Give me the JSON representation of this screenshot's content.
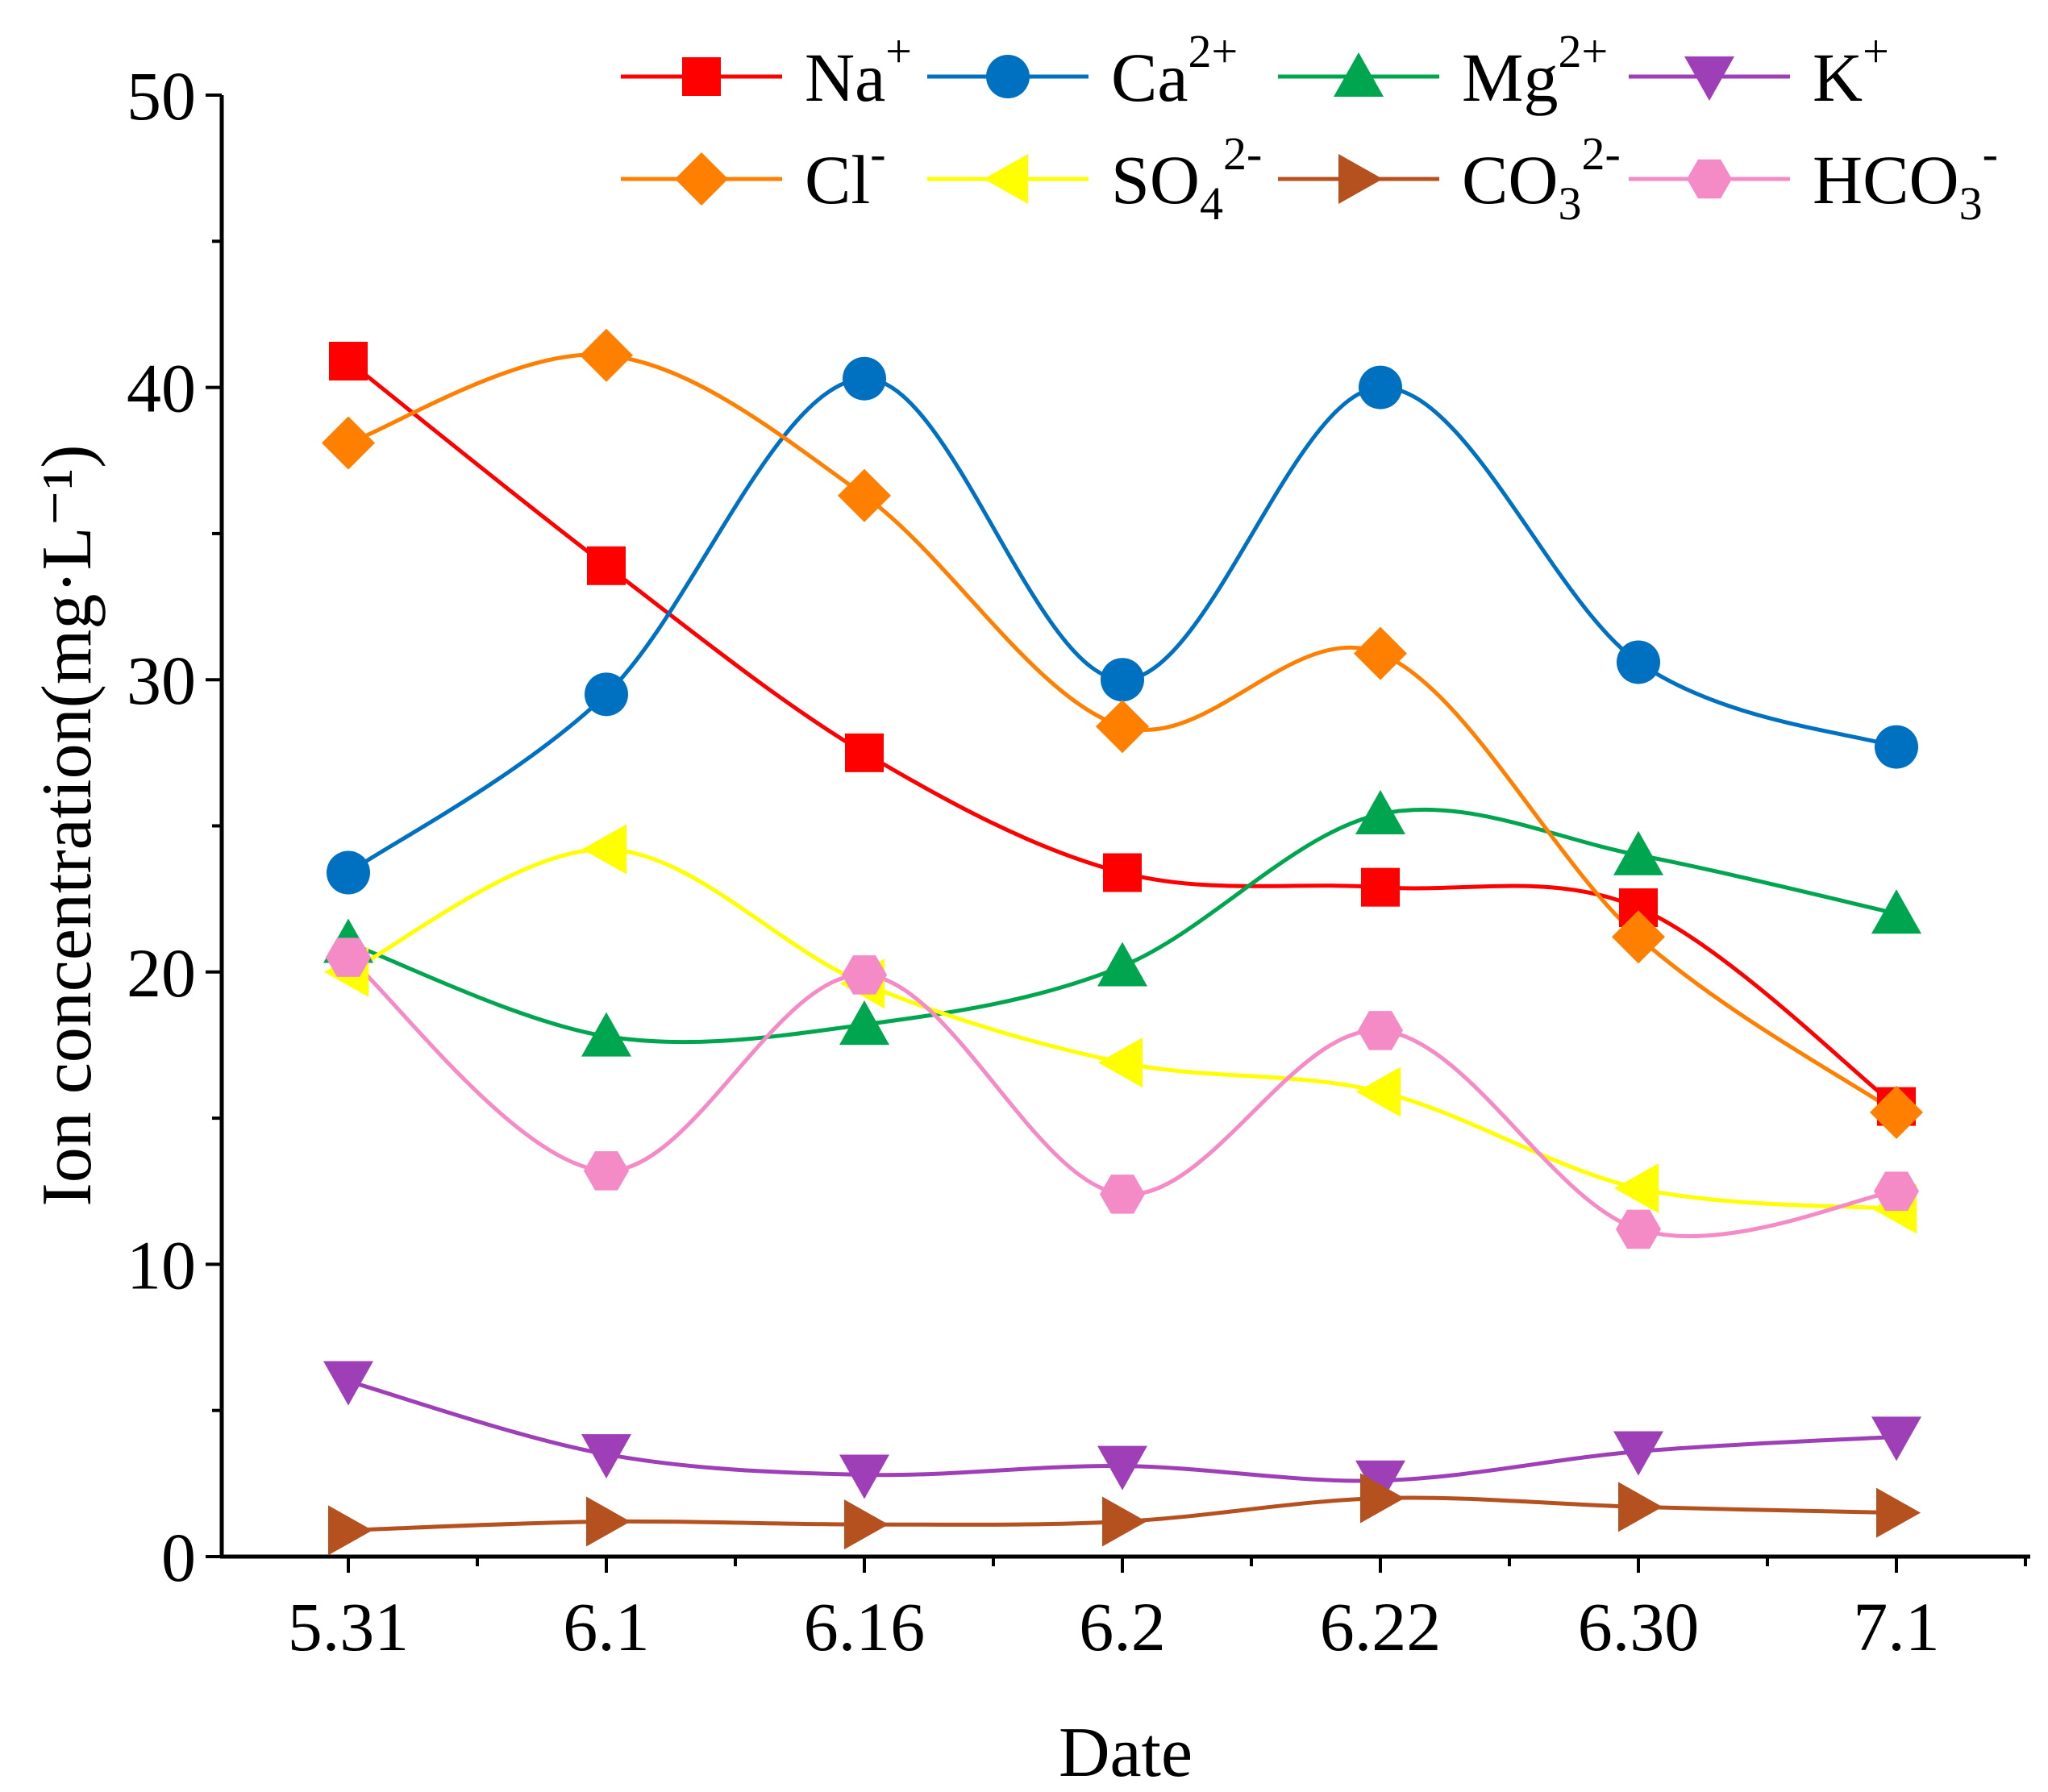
{
  "chart_data": {
    "type": "line",
    "title": "",
    "xlabel": "Date",
    "ylabel": "Ion concentration(mg·L⁻¹)",
    "categories": [
      "5.31",
      "6.1",
      "6.16",
      "6.2",
      "6.22",
      "6.30",
      "7.1"
    ],
    "ylim": [
      0,
      50
    ],
    "yticks": [
      "0",
      "10",
      "20",
      "30",
      "40",
      "50"
    ],
    "grid": false,
    "legend_position": "top-right",
    "series": [
      {
        "name": "Na⁺",
        "base": "Na",
        "sup": "+",
        "sub": "",
        "color": "#FF0000",
        "marker": "square",
        "values": [
          40.9,
          33.9,
          27.5,
          23.4,
          22.9,
          22.2,
          15.4
        ]
      },
      {
        "name": "Ca²⁺",
        "base": "Ca",
        "sup": "2+",
        "sub": "",
        "color": "#0070C0",
        "marker": "circle",
        "values": [
          23.4,
          29.5,
          40.3,
          30.0,
          40.0,
          30.6,
          27.7
        ]
      },
      {
        "name": "Mg²⁺",
        "base": "Mg",
        "sup": "2+",
        "sub": "",
        "color": "#00A64F",
        "marker": "triangle-up",
        "values": [
          21.0,
          17.8,
          18.2,
          20.2,
          25.4,
          24.0,
          22.0
        ]
      },
      {
        "name": "K⁺",
        "base": "K",
        "sup": "+",
        "sub": "",
        "color": "#9E3FB8",
        "marker": "triangle-down",
        "values": [
          6.0,
          3.5,
          2.8,
          3.1,
          2.6,
          3.6,
          4.1
        ]
      },
      {
        "name": "Cl⁻",
        "base": "Cl",
        "sup": "-",
        "sub": "",
        "color": "#FF7F00",
        "marker": "diamond",
        "values": [
          38.1,
          41.1,
          36.3,
          28.4,
          30.9,
          21.2,
          15.2
        ]
      },
      {
        "name": "SO₄²⁻",
        "base": "SO",
        "sup": "2-",
        "sub": "4",
        "color": "#FFFF00",
        "marker": "triangle-left",
        "values": [
          20.0,
          24.2,
          19.6,
          16.9,
          15.9,
          12.6,
          11.9
        ]
      },
      {
        "name": "CO₃²⁻",
        "base": "CO",
        "sup": "2-",
        "sub": "3",
        "color": "#B5511F",
        "marker": "triangle-right",
        "values": [
          0.9,
          1.2,
          1.1,
          1.2,
          2.0,
          1.7,
          1.5
        ]
      },
      {
        "name": "HCO₃⁻",
        "base": "HCO",
        "sup": "-",
        "sub": "3",
        "color": "#F48BC6",
        "marker": "hexagon",
        "values": [
          20.5,
          13.2,
          19.9,
          12.4,
          18.0,
          11.2,
          12.5
        ]
      }
    ]
  }
}
